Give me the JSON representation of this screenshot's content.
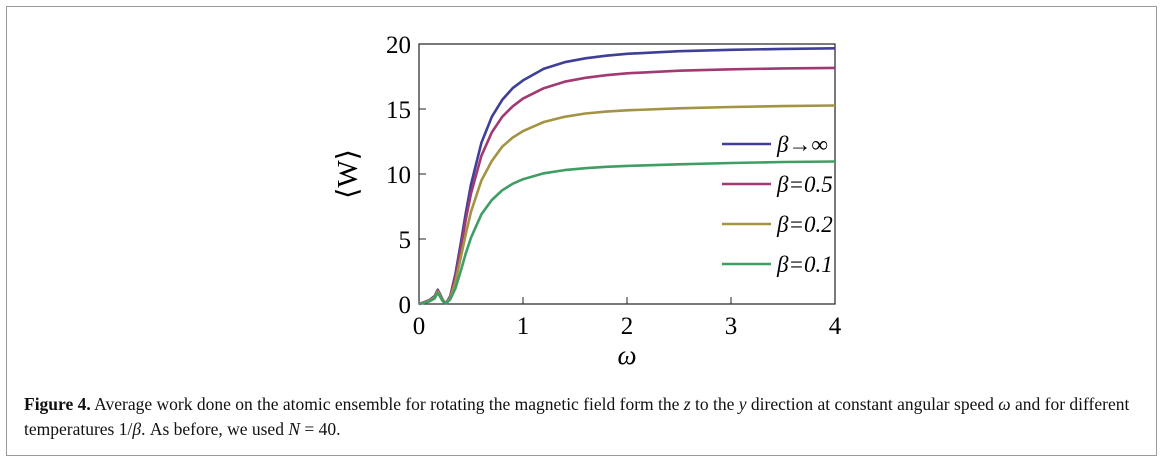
{
  "chart_data": {
    "type": "line",
    "title": "",
    "xlabel": "ω",
    "ylabel": "⟨W⟩",
    "xlim": [
      0,
      4
    ],
    "ylim": [
      0,
      20
    ],
    "xticks": [
      0,
      1,
      2,
      3,
      4
    ],
    "yticks": [
      0,
      5,
      10,
      15,
      20
    ],
    "grid": false,
    "legend_position": "bottom-right",
    "series": [
      {
        "name": "β→∞",
        "color": "#3f3f98",
        "x": [
          0,
          0.05,
          0.1,
          0.15,
          0.18,
          0.2,
          0.23,
          0.26,
          0.3,
          0.35,
          0.4,
          0.45,
          0.5,
          0.6,
          0.7,
          0.8,
          0.9,
          1.0,
          1.2,
          1.4,
          1.6,
          1.8,
          2.0,
          2.5,
          3.0,
          3.5,
          4.0
        ],
        "values": [
          0,
          0.15,
          0.3,
          0.6,
          1.1,
          0.8,
          0.3,
          0.05,
          0.6,
          2.3,
          4.6,
          7.0,
          9.2,
          12.4,
          14.4,
          15.7,
          16.6,
          17.2,
          18.1,
          18.6,
          18.9,
          19.1,
          19.25,
          19.45,
          19.55,
          19.62,
          19.67
        ]
      },
      {
        "name": "β=0.5",
        "color": "#a03a72",
        "x": [
          0,
          0.05,
          0.1,
          0.15,
          0.18,
          0.2,
          0.23,
          0.26,
          0.3,
          0.35,
          0.4,
          0.45,
          0.5,
          0.6,
          0.7,
          0.8,
          0.9,
          1.0,
          1.2,
          1.4,
          1.6,
          1.8,
          2.0,
          2.5,
          3.0,
          3.5,
          4.0
        ],
        "values": [
          0,
          0.14,
          0.28,
          0.55,
          1.05,
          0.75,
          0.28,
          0.05,
          0.55,
          2.1,
          4.2,
          6.5,
          8.5,
          11.4,
          13.2,
          14.4,
          15.2,
          15.8,
          16.6,
          17.1,
          17.4,
          17.6,
          17.75,
          17.95,
          18.05,
          18.12,
          18.16
        ]
      },
      {
        "name": "β=0.2",
        "color": "#a39443",
        "x": [
          0,
          0.05,
          0.1,
          0.15,
          0.18,
          0.2,
          0.23,
          0.26,
          0.3,
          0.35,
          0.4,
          0.45,
          0.5,
          0.6,
          0.7,
          0.8,
          0.9,
          1.0,
          1.2,
          1.4,
          1.6,
          1.8,
          2.0,
          2.5,
          3.0,
          3.5,
          4.0
        ],
        "values": [
          0,
          0.12,
          0.25,
          0.5,
          0.95,
          0.7,
          0.25,
          0.05,
          0.45,
          1.7,
          3.5,
          5.4,
          7.1,
          9.5,
          11.0,
          12.1,
          12.8,
          13.3,
          14.0,
          14.4,
          14.65,
          14.8,
          14.9,
          15.05,
          15.15,
          15.22,
          15.27
        ]
      },
      {
        "name": "β=0.1",
        "color": "#3e9e63",
        "x": [
          0,
          0.05,
          0.1,
          0.15,
          0.18,
          0.2,
          0.23,
          0.26,
          0.3,
          0.35,
          0.4,
          0.45,
          0.5,
          0.6,
          0.7,
          0.8,
          0.9,
          1.0,
          1.2,
          1.4,
          1.6,
          1.8,
          2.0,
          2.5,
          3.0,
          3.5,
          4.0
        ],
        "values": [
          0,
          0.1,
          0.2,
          0.42,
          0.85,
          0.6,
          0.2,
          0.05,
          0.35,
          1.2,
          2.5,
          3.9,
          5.1,
          6.9,
          8.0,
          8.75,
          9.25,
          9.6,
          10.05,
          10.3,
          10.45,
          10.55,
          10.62,
          10.75,
          10.85,
          10.92,
          10.96
        ]
      }
    ]
  },
  "caption": {
    "label": "Figure 4.",
    "text_1": " Average work done on the atomic ensemble for rotating the magnetic field form the ",
    "z": "z",
    "text_2": " to the ",
    "y": "y",
    "text_3": " direction at constant angular speed ",
    "omega": "ω",
    "text_4": " and for different temperatures 1/",
    "beta": "β",
    "text_5": ". As before, we used ",
    "N": "N",
    "text_6": " = 40."
  }
}
